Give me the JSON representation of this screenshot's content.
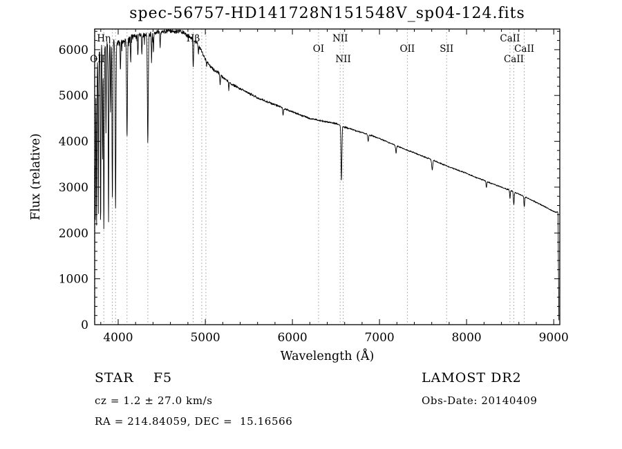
{
  "chart_data": {
    "type": "line",
    "title": "spec-56757-HD141728N151548V_sp04-124.fits",
    "xlabel": "Wavelength (Å)",
    "ylabel": "Flux (relative)",
    "xlim": [
      3730,
      9070
    ],
    "ylim": [
      0,
      6450
    ],
    "xticks": [
      4000,
      5000,
      6000,
      7000,
      8000,
      9000
    ],
    "yticks": [
      0,
      1000,
      2000,
      3000,
      4000,
      5000,
      6000
    ],
    "grid": false,
    "legend": "none",
    "noise_seed": 42,
    "noise_profile": [
      [
        3732,
        110
      ],
      [
        3950,
        100
      ],
      [
        4100,
        80
      ],
      [
        4400,
        70
      ],
      [
        4700,
        50
      ],
      [
        5000,
        40
      ],
      [
        5500,
        32
      ],
      [
        6000,
        27
      ],
      [
        6500,
        23
      ],
      [
        7000,
        20
      ],
      [
        7500,
        18
      ],
      [
        8000,
        17
      ],
      [
        8600,
        18
      ],
      [
        9060,
        14
      ]
    ],
    "continuum": [
      [
        3732,
        4000
      ],
      [
        3745,
        5200
      ],
      [
        3760,
        5700
      ],
      [
        3775,
        5900
      ],
      [
        3790,
        6000
      ],
      [
        3810,
        6050
      ],
      [
        3830,
        6080
      ],
      [
        3850,
        6100
      ],
      [
        3870,
        6100
      ],
      [
        3890,
        6150
      ],
      [
        3910,
        6120
      ],
      [
        3930,
        6100
      ],
      [
        3950,
        6150
      ],
      [
        3970,
        6100
      ],
      [
        4000,
        6150
      ],
      [
        4030,
        6180
      ],
      [
        4060,
        6150
      ],
      [
        4100,
        6250
      ],
      [
        4150,
        6280
      ],
      [
        4200,
        6300
      ],
      [
        4250,
        6320
      ],
      [
        4300,
        6300
      ],
      [
        4350,
        6330
      ],
      [
        4400,
        6350
      ],
      [
        4450,
        6380
      ],
      [
        4500,
        6380
      ],
      [
        4550,
        6400
      ],
      [
        4600,
        6410
      ],
      [
        4650,
        6390
      ],
      [
        4700,
        6400
      ],
      [
        4750,
        6370
      ],
      [
        4800,
        6300
      ],
      [
        4850,
        6250
      ],
      [
        4900,
        6150
      ],
      [
        4950,
        6000
      ],
      [
        5000,
        5800
      ],
      [
        5050,
        5650
      ],
      [
        5100,
        5550
      ],
      [
        5150,
        5500
      ],
      [
        5200,
        5400
      ],
      [
        5300,
        5250
      ],
      [
        5400,
        5150
      ],
      [
        5500,
        5050
      ],
      [
        5600,
        4950
      ],
      [
        5700,
        4870
      ],
      [
        5800,
        4800
      ],
      [
        5900,
        4720
      ],
      [
        6000,
        4640
      ],
      [
        6100,
        4570
      ],
      [
        6200,
        4500
      ],
      [
        6300,
        4460
      ],
      [
        6400,
        4420
      ],
      [
        6500,
        4390
      ],
      [
        6600,
        4310
      ],
      [
        6700,
        4250
      ],
      [
        6800,
        4190
      ],
      [
        6900,
        4130
      ],
      [
        7000,
        4060
      ],
      [
        7100,
        3980
      ],
      [
        7200,
        3900
      ],
      [
        7300,
        3820
      ],
      [
        7400,
        3750
      ],
      [
        7500,
        3670
      ],
      [
        7600,
        3600
      ],
      [
        7700,
        3520
      ],
      [
        7800,
        3440
      ],
      [
        7900,
        3370
      ],
      [
        8000,
        3300
      ],
      [
        8100,
        3220
      ],
      [
        8200,
        3150
      ],
      [
        8300,
        3070
      ],
      [
        8400,
        3000
      ],
      [
        8500,
        2930
      ],
      [
        8600,
        2850
      ],
      [
        8700,
        2760
      ],
      [
        8800,
        2670
      ],
      [
        8900,
        2570
      ],
      [
        8950,
        2520
      ],
      [
        9000,
        2470
      ],
      [
        9030,
        2450
      ],
      [
        9045,
        2460
      ],
      [
        9050,
        2420
      ],
      [
        9054,
        1500
      ],
      [
        9058,
        400
      ],
      [
        9060,
        0
      ]
    ],
    "absorption_lines": [
      {
        "wl": 3737,
        "flux": 2300,
        "w": 3
      },
      {
        "wl": 3752,
        "flux": 2250,
        "w": 3
      },
      {
        "wl": 3772,
        "flux": 2450,
        "w": 3
      },
      {
        "wl": 3798,
        "flux": 2150,
        "w": 3.5
      },
      {
        "wl": 3820,
        "flux": 3600,
        "w": 3
      },
      {
        "wl": 3835,
        "flux": 2050,
        "w": 4
      },
      {
        "wl": 3860,
        "flux": 4200,
        "w": 3
      },
      {
        "wl": 3889,
        "flux": 2300,
        "w": 4
      },
      {
        "wl": 3912,
        "flux": 4600,
        "w": 3
      },
      {
        "wl": 3933,
        "flux": 2700,
        "w": 4
      },
      {
        "wl": 3970,
        "flux": 2500,
        "w": 4.5
      },
      {
        "wl": 4026,
        "flux": 5500,
        "w": 3
      },
      {
        "wl": 4101,
        "flux": 4100,
        "w": 5
      },
      {
        "wl": 4144,
        "flux": 5700,
        "w": 3
      },
      {
        "wl": 4226,
        "flux": 5800,
        "w": 3
      },
      {
        "wl": 4271,
        "flux": 5900,
        "w": 3
      },
      {
        "wl": 4340,
        "flux": 3950,
        "w": 5
      },
      {
        "wl": 4383,
        "flux": 5750,
        "w": 3.5
      },
      {
        "wl": 4405,
        "flux": 5950,
        "w": 3
      },
      {
        "wl": 4481,
        "flux": 6050,
        "w": 3
      },
      {
        "wl": 4861,
        "flux": 5600,
        "w": 4
      },
      {
        "wl": 4921,
        "flux": 5900,
        "w": 3
      },
      {
        "wl": 5015,
        "flux": 5650,
        "w": 3
      },
      {
        "wl": 5170,
        "flux": 5250,
        "w": 4
      },
      {
        "wl": 5270,
        "flux": 5100,
        "w": 3
      },
      {
        "wl": 5893,
        "flux": 4570,
        "w": 4
      },
      {
        "wl": 6563,
        "flux": 3150,
        "w": 5
      },
      {
        "wl": 6870,
        "flux": 4000,
        "w": 5
      },
      {
        "wl": 7190,
        "flux": 3750,
        "w": 5
      },
      {
        "wl": 7605,
        "flux": 3380,
        "w": 6
      },
      {
        "wl": 8227,
        "flux": 2980,
        "w": 4
      },
      {
        "wl": 8498,
        "flux": 2760,
        "w": 4
      },
      {
        "wl": 8542,
        "flux": 2620,
        "w": 4.5
      },
      {
        "wl": 8662,
        "flux": 2560,
        "w": 4
      }
    ],
    "dotted_lines": [
      3727,
      3835,
      3933,
      3970,
      4101,
      4340,
      4861,
      4959,
      5007,
      6300,
      6548,
      6583,
      7320,
      7770,
      8498,
      8542,
      8662
    ],
    "line_labels": [
      {
        "text": "Hη",
        "wl": 3835,
        "row": 0
      },
      {
        "text": "OII",
        "wl": 3727,
        "row": 2
      },
      {
        "text": "Hβ",
        "wl": 4861,
        "row": 0
      },
      {
        "text": "NII",
        "wl": 6548,
        "row": 0
      },
      {
        "text": "OI",
        "wl": 6300,
        "row": 1
      },
      {
        "text": "NII",
        "wl": 6583,
        "row": 2
      },
      {
        "text": "OII",
        "wl": 7320,
        "row": 1
      },
      {
        "text": "SII",
        "wl": 7770,
        "row": 1
      },
      {
        "text": "CaII",
        "wl": 8498,
        "row": 0
      },
      {
        "text": "CaII",
        "wl": 8662,
        "row": 1
      },
      {
        "text": "CaII",
        "wl": 8542,
        "row": 2
      }
    ]
  },
  "footer": {
    "class_label": "STAR    F5",
    "survey": "LAMOST DR2",
    "cz": "cz = 1.2 ± 27.0 km/s",
    "obs_date": "Obs-Date: 20140409",
    "coords": "RA = 214.84059, DEC =  15.16566"
  }
}
